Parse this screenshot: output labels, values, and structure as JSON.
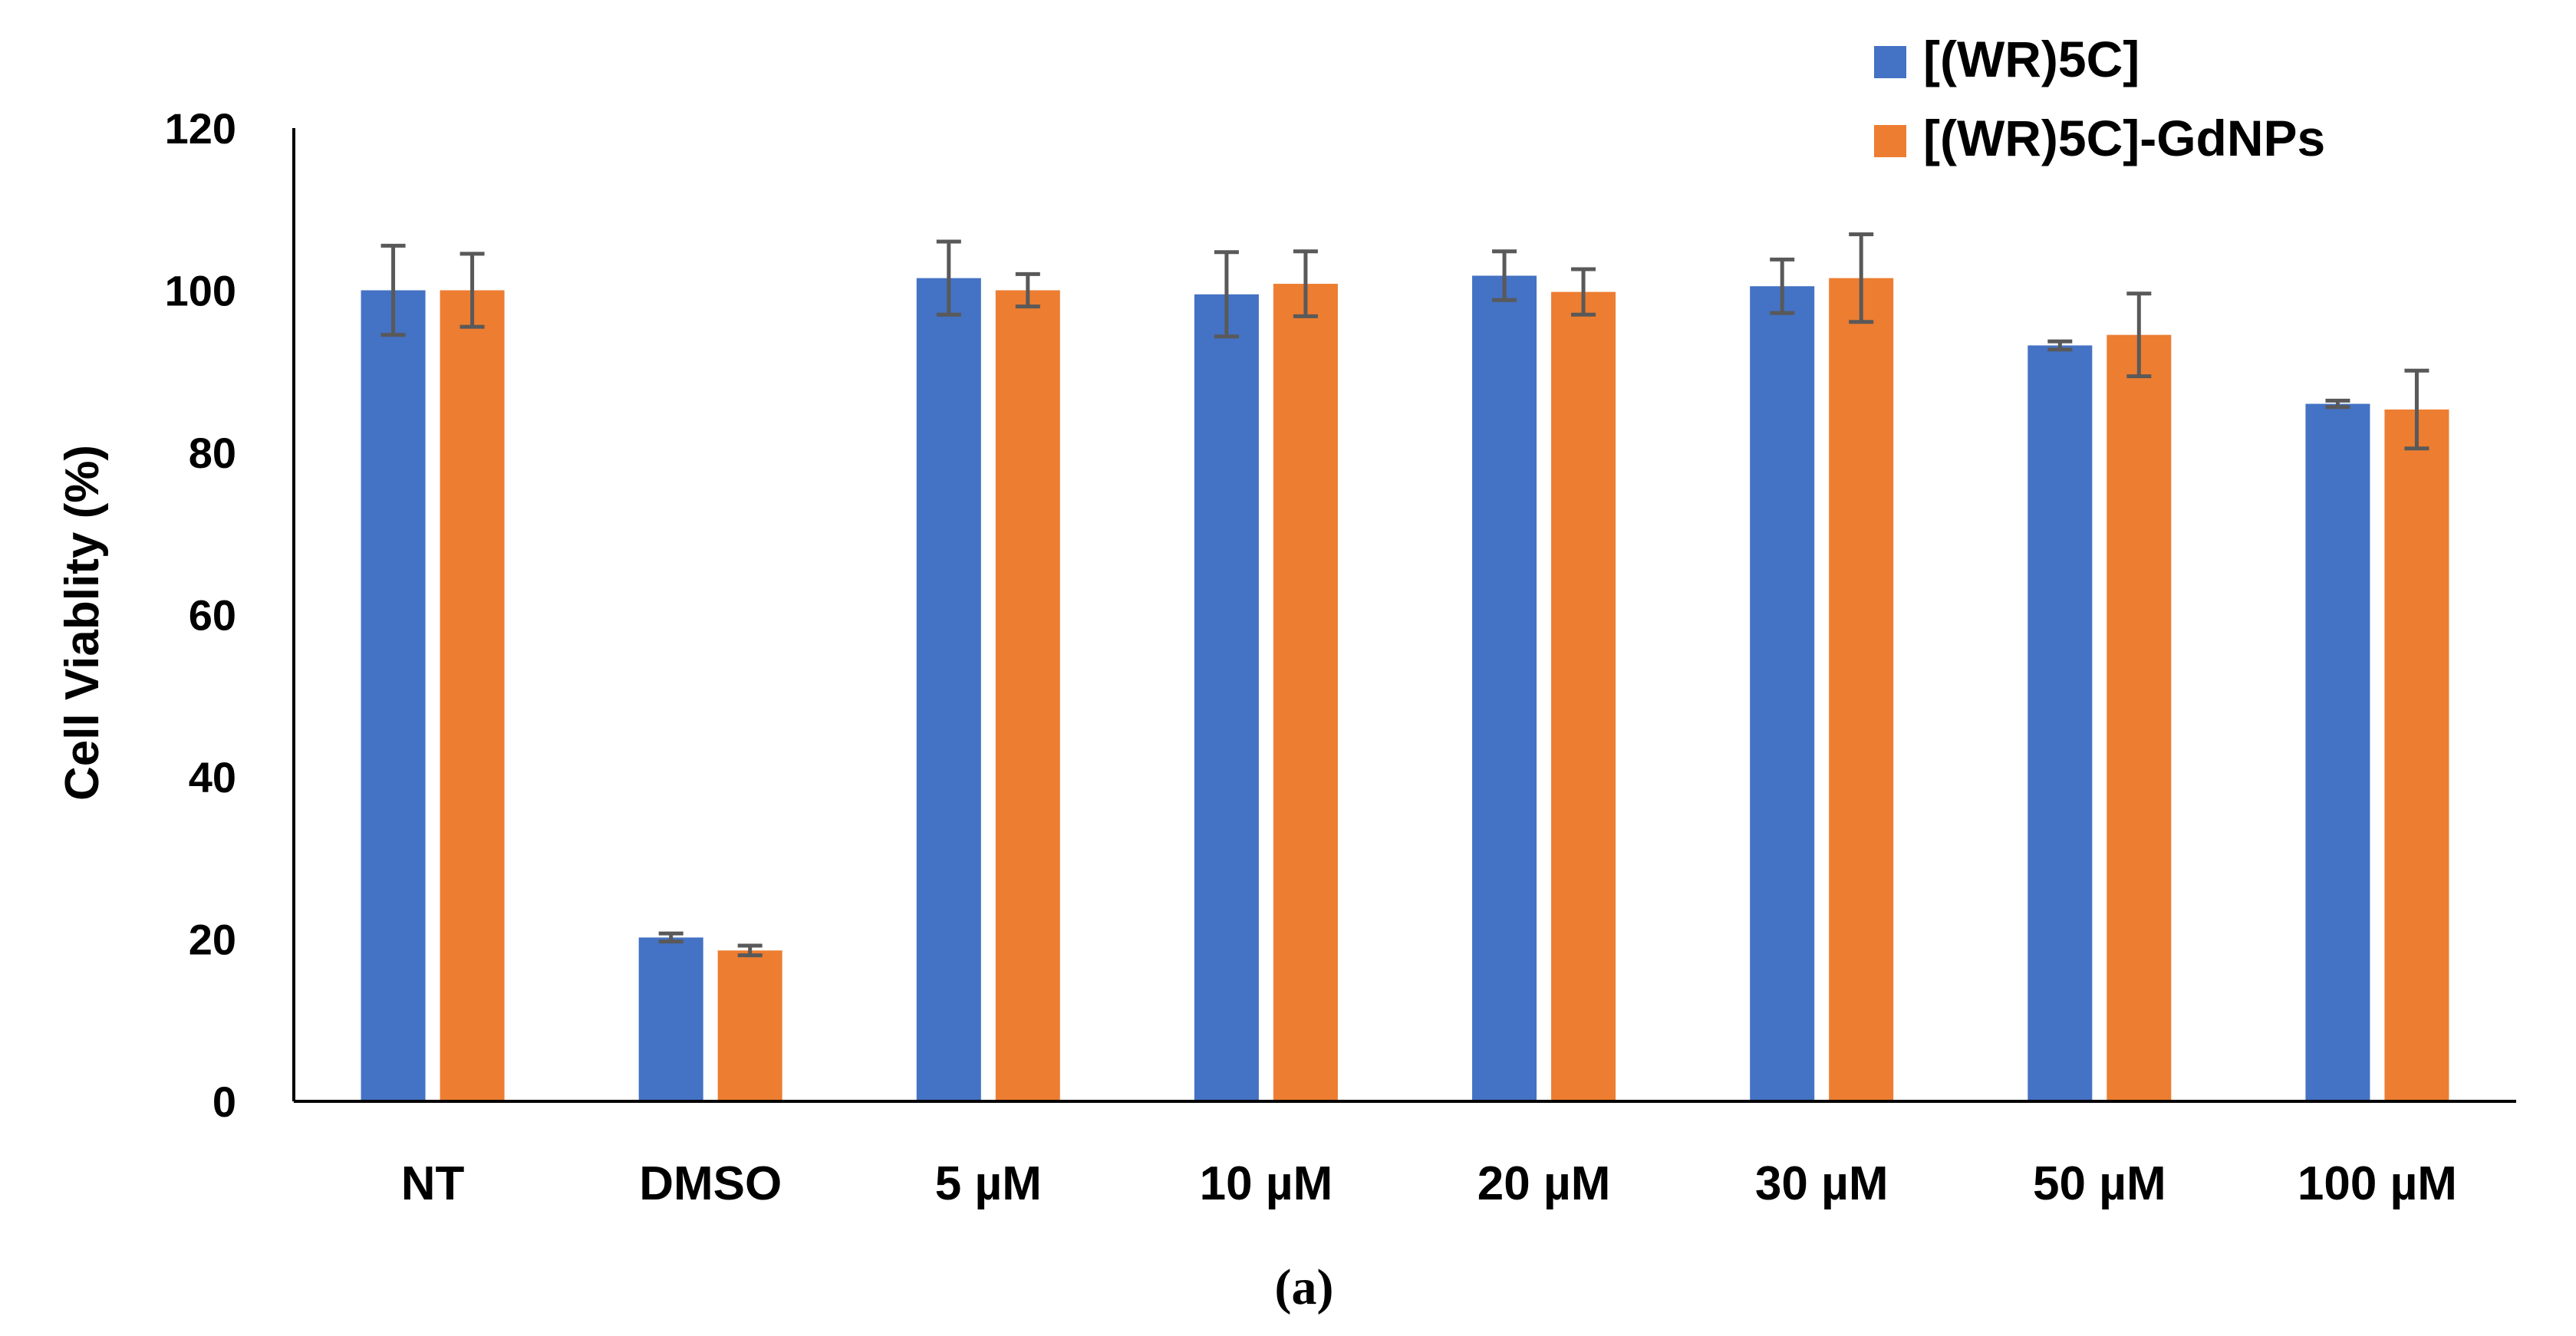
{
  "chart_data": {
    "type": "bar",
    "title": "",
    "xlabel": "",
    "ylabel": "Cell Viablity (%)",
    "ylim": [
      0,
      120
    ],
    "yticks": [
      "0",
      "20",
      "40",
      "60",
      "80",
      "100",
      "120"
    ],
    "grid": false,
    "legend_position": "top-right",
    "caption": "(a)",
    "categories": [
      "NT",
      "DMSO",
      "5 µM",
      "10 µM",
      "20 µM",
      "30 µM",
      "50 µM",
      "100 µM"
    ],
    "series": [
      {
        "name": "[(WR)5C]",
        "color": "#4472C4",
        "values": [
          100,
          20.2,
          101.5,
          99.5,
          101.8,
          100.5,
          93.2,
          86
        ],
        "errors": [
          5.5,
          0.5,
          4.5,
          5.2,
          3,
          3.3,
          0.5,
          0.4
        ]
      },
      {
        "name": "[(WR)5C]-GdNPs",
        "color": "#ED7D31",
        "values": [
          100,
          18.6,
          100,
          100.8,
          99.8,
          101.5,
          94.5,
          85.3
        ],
        "errors": [
          4.5,
          0.6,
          2,
          4,
          2.8,
          5.4,
          5.1,
          4.8
        ]
      }
    ],
    "error_bar_color": "#595959"
  }
}
